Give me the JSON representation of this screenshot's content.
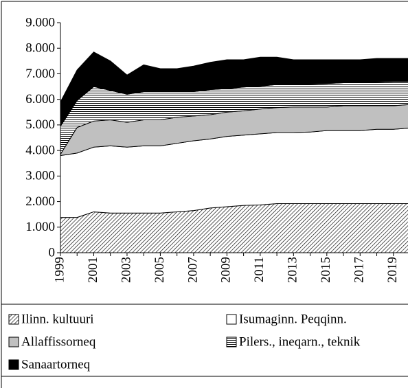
{
  "chart_data": {
    "type": "stacked_area",
    "categories": [
      "1999",
      null,
      "2001",
      null,
      "2003",
      null,
      "2005",
      null,
      "2007",
      null,
      "2009",
      null,
      "2011",
      null,
      "2013",
      null,
      "2015",
      null,
      "2017",
      null,
      "2019",
      null
    ],
    "series": [
      {
        "name": "Ilinn. kultuuri",
        "color": "#000000",
        "pattern": "diagonal",
        "values": [
          1380,
          1380,
          1600,
          1550,
          1550,
          1550,
          1550,
          1600,
          1650,
          1750,
          1800,
          1850,
          1870,
          1920,
          1920,
          1920,
          1920,
          1920,
          1920,
          1920,
          1920,
          1920
        ]
      },
      {
        "name": "Isumaginn. Peqqinn.",
        "color": "#ffffff",
        "pattern": "solid",
        "values": [
          2420,
          2520,
          2530,
          2630,
          2580,
          2630,
          2630,
          2680,
          2730,
          2700,
          2750,
          2750,
          2780,
          2780,
          2780,
          2800,
          2860,
          2860,
          2860,
          2910,
          2910,
          2960
        ]
      },
      {
        "name": "Allaffissorneq",
        "color": "#c0c0c0",
        "pattern": "solid",
        "values": [
          50,
          1000,
          1020,
          1020,
          970,
          1020,
          1020,
          1020,
          970,
          950,
          950,
          950,
          970,
          980,
          1000,
          980,
          920,
          970,
          970,
          920,
          920,
          920
        ]
      },
      {
        "name": "Pilers., ineqarn., teknik",
        "color": "#000000",
        "pattern": "horizontal",
        "values": [
          1100,
          1050,
          1350,
          1150,
          1100,
          1100,
          1100,
          1000,
          950,
          980,
          920,
          930,
          900,
          900,
          880,
          900,
          920,
          900,
          900,
          930,
          950,
          900
        ]
      },
      {
        "name": "Sanaartorneq",
        "color": "#000000",
        "pattern": "solid",
        "values": [
          950,
          1200,
          1350,
          1150,
          750,
          1050,
          900,
          900,
          1000,
          1070,
          1130,
          1070,
          1130,
          1070,
          970,
          950,
          930,
          900,
          900,
          920,
          900,
          900
        ]
      }
    ],
    "ylim": [
      0,
      9000
    ],
    "yticks": [
      0,
      {
        "value": 1000,
        "label": "1.000"
      },
      {
        "value": 2000,
        "label": "2.000"
      },
      {
        "value": 3000,
        "label": "3.000"
      },
      {
        "value": 4000,
        "label": "4.000"
      },
      {
        "value": 5000,
        "label": "5.000"
      },
      {
        "value": 6000,
        "label": "6.000"
      },
      {
        "value": 7000,
        "label": "7.000"
      },
      {
        "value": 8000,
        "label": "8.000"
      },
      {
        "value": 9000,
        "label": "9.000"
      }
    ],
    "legend": "bottom"
  }
}
